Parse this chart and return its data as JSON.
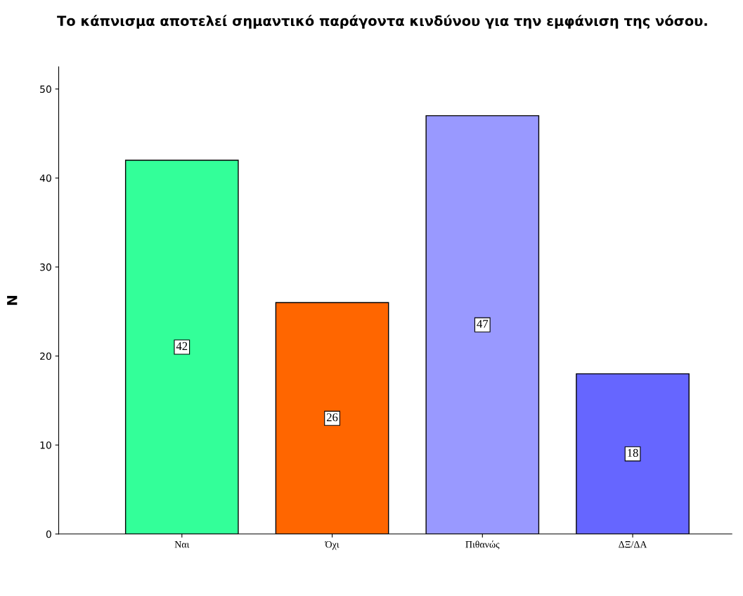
{
  "chart_data": {
    "type": "bar",
    "title": "Το κάπνισμα αποτελεί σημαντικό παράγοντα κινδύνου για την εμφάνιση της νόσου.",
    "ylabel": "N",
    "categories": [
      "Ναι",
      "Όχι",
      "Πιθανώς",
      "ΔΞ/ΔΑ"
    ],
    "values": [
      42,
      26,
      47,
      18
    ],
    "colors": [
      "#33ff99",
      "#ff6600",
      "#9999ff",
      "#6666ff"
    ],
    "ylim": [
      0,
      52.5
    ],
    "yticks": [
      0,
      10,
      20,
      30,
      40,
      50
    ],
    "data_labels": true,
    "grid": false
  }
}
